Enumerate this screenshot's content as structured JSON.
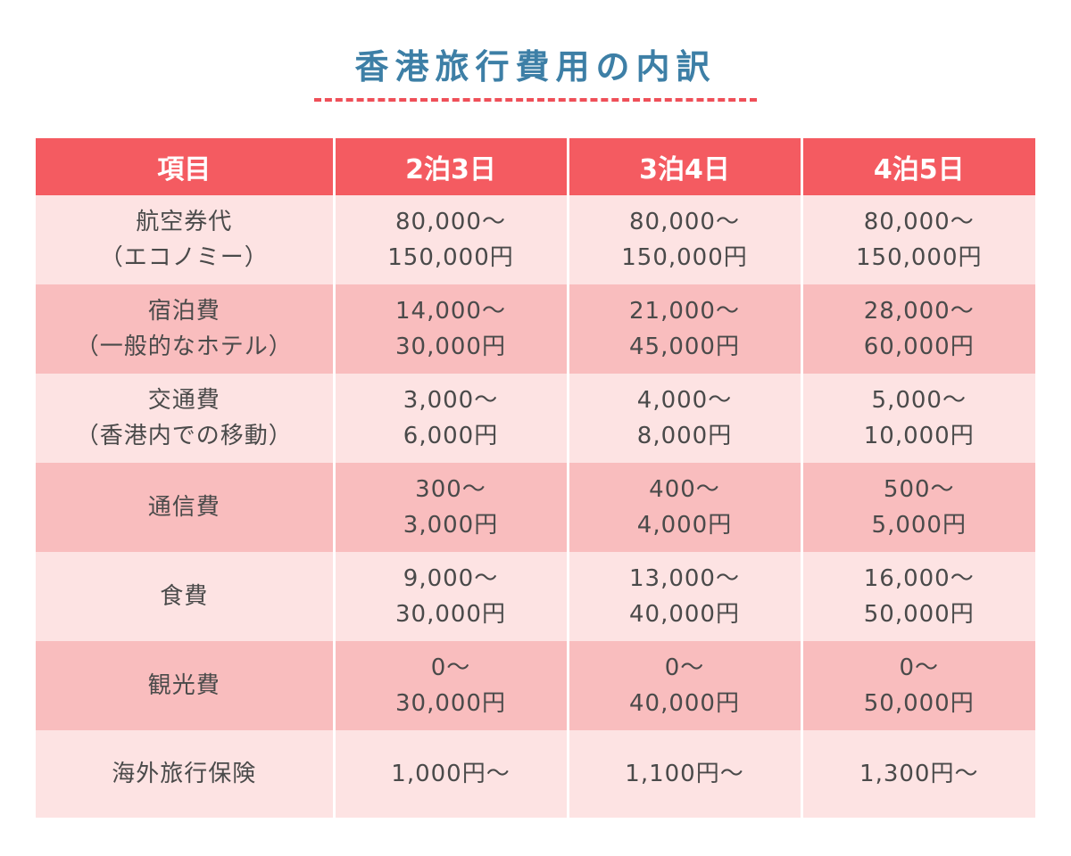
{
  "title": "香港旅行費用の内訳",
  "colors": {
    "title": "#3d7fa6",
    "underline": "#ef4f58",
    "header_bg": "#f45b61",
    "row_light": "#fde3e3",
    "row_dark": "#f9bdbe",
    "text": "#4a4a4a"
  },
  "table": {
    "headers": [
      "項目",
      "2泊3日",
      "3泊4日",
      "4泊5日"
    ],
    "rows": [
      {
        "item": [
          "航空券代",
          "（エコノミー）"
        ],
        "cells": [
          [
            "80,000～",
            "150,000円"
          ],
          [
            "80,000～",
            "150,000円"
          ],
          [
            "80,000～",
            "150,000円"
          ]
        ]
      },
      {
        "item": [
          "宿泊費",
          "（一般的なホテル）"
        ],
        "cells": [
          [
            "14,000～",
            "30,000円"
          ],
          [
            "21,000～",
            "45,000円"
          ],
          [
            "28,000～",
            "60,000円"
          ]
        ]
      },
      {
        "item": [
          "交通費",
          "（香港内での移動）"
        ],
        "cells": [
          [
            "3,000～",
            "6,000円"
          ],
          [
            "4,000～",
            "8,000円"
          ],
          [
            "5,000～",
            "10,000円"
          ]
        ]
      },
      {
        "item": [
          "通信費"
        ],
        "cells": [
          [
            "300～",
            "3,000円"
          ],
          [
            "400～",
            "4,000円"
          ],
          [
            "500～",
            "5,000円"
          ]
        ]
      },
      {
        "item": [
          "食費"
        ],
        "cells": [
          [
            "9,000～",
            "30,000円"
          ],
          [
            "13,000～",
            "40,000円"
          ],
          [
            "16,000～",
            "50,000円"
          ]
        ]
      },
      {
        "item": [
          "観光費"
        ],
        "cells": [
          [
            "0～",
            "30,000円"
          ],
          [
            "0～",
            "40,000円"
          ],
          [
            "0～",
            "50,000円"
          ]
        ]
      },
      {
        "item": [
          "海外旅行保険"
        ],
        "cells": [
          [
            "1,000円～"
          ],
          [
            "1,100円～"
          ],
          [
            "1,300円～"
          ]
        ]
      }
    ]
  }
}
